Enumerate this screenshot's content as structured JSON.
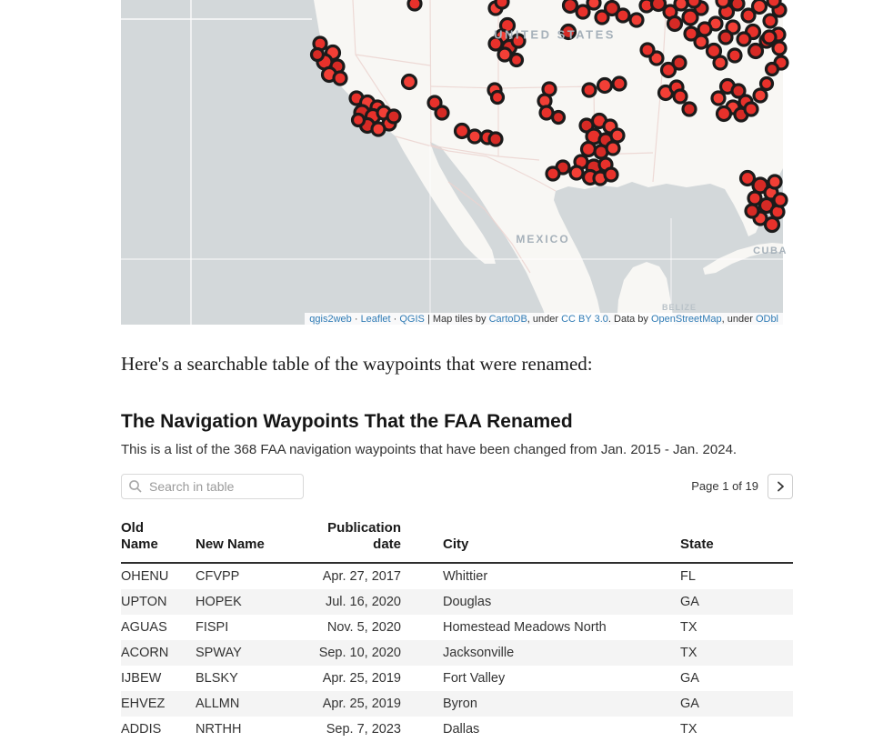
{
  "map": {
    "ocean_color": "#d3d8da",
    "land_color": "#f8f7f4",
    "marker_stroke": "#1b1b1b",
    "marker_palette": [
      "#e8312b",
      "#d62a25",
      "#f23f36",
      "#cc261f"
    ],
    "labels": {
      "united_states": "UNITED STATES",
      "mexico": "MEXICO",
      "cuba": "CUBA",
      "belize": "BELIZE"
    },
    "attribution_parts": [
      [
        "qgis2web",
        true
      ],
      [
        " · ",
        false
      ],
      [
        "Leaflet",
        true
      ],
      [
        " · ",
        false
      ],
      [
        "QGIS",
        true
      ],
      [
        " | Map tiles by ",
        false
      ],
      [
        "CartoDB",
        true
      ],
      [
        ", under ",
        false
      ],
      [
        "CC BY 3.0",
        true
      ],
      [
        ". Data by ",
        false
      ],
      [
        "OpenStreetMap",
        true
      ],
      [
        ", under ",
        false
      ],
      [
        "ODbl",
        true
      ]
    ],
    "markers": [
      [
        219,
        48,
        7,
        0
      ],
      [
        233,
        58,
        7.5,
        2
      ],
      [
        224,
        68,
        8,
        0
      ],
      [
        238,
        73,
        7,
        1
      ],
      [
        229,
        82,
        7.5,
        2
      ],
      [
        241,
        86,
        7,
        0
      ],
      [
        216,
        60,
        6.5,
        1
      ],
      [
        259,
        108,
        7,
        0
      ],
      [
        271,
        113,
        7.5,
        2
      ],
      [
        282,
        118,
        7,
        0
      ],
      [
        265,
        124,
        8,
        1
      ],
      [
        277,
        128,
        7.5,
        0
      ],
      [
        289,
        124,
        7,
        2
      ],
      [
        295,
        136,
        7,
        0
      ],
      [
        271,
        138,
        7.5,
        1
      ],
      [
        283,
        142,
        7,
        2
      ],
      [
        261,
        132,
        6.5,
        0
      ],
      [
        300,
        128,
        7,
        1
      ],
      [
        317,
        90,
        7.5,
        2
      ],
      [
        345,
        113,
        7,
        0
      ],
      [
        353,
        124,
        7,
        1
      ],
      [
        375,
        144,
        7.5,
        0
      ],
      [
        389,
        150,
        7,
        2
      ],
      [
        403,
        151,
        7,
        0
      ],
      [
        412,
        153,
        7,
        1
      ],
      [
        411,
        99,
        7,
        2
      ],
      [
        414,
        107,
        6.5,
        0
      ],
      [
        425,
        28,
        7.5,
        0
      ],
      [
        419,
        40,
        7,
        2
      ],
      [
        412,
        48,
        7,
        0
      ],
      [
        427,
        52,
        7.5,
        1
      ],
      [
        437,
        45,
        7,
        0
      ],
      [
        422,
        60,
        7,
        2
      ],
      [
        435,
        66,
        6.5,
        0
      ],
      [
        492,
        35,
        7.5,
        1
      ],
      [
        471,
        98,
        7,
        0
      ],
      [
        466,
        111,
        7,
        2
      ],
      [
        468,
        124,
        7,
        0
      ],
      [
        481,
        129,
        6.5,
        1
      ],
      [
        515,
        99,
        7,
        0
      ],
      [
        532,
        94,
        7.5,
        2
      ],
      [
        548,
        92,
        7,
        0
      ],
      [
        512,
        138,
        7,
        1
      ],
      [
        526,
        133,
        7.5,
        0
      ],
      [
        538,
        139,
        7,
        2
      ],
      [
        520,
        150,
        8,
        0
      ],
      [
        533,
        154,
        7,
        1
      ],
      [
        546,
        149,
        7,
        2
      ],
      [
        514,
        164,
        7.5,
        0
      ],
      [
        528,
        167,
        7,
        1
      ],
      [
        541,
        163,
        7,
        2
      ],
      [
        506,
        178,
        7,
        0
      ],
      [
        520,
        184,
        8,
        1
      ],
      [
        533,
        181,
        7,
        0
      ],
      [
        501,
        190,
        7,
        2
      ],
      [
        516,
        195,
        7.5,
        0
      ],
      [
        486,
        184,
        7,
        1
      ],
      [
        475,
        191,
        7,
        0
      ],
      [
        527,
        196,
        7,
        2
      ],
      [
        539,
        192,
        7,
        0
      ],
      [
        323,
        4,
        7,
        0
      ],
      [
        412,
        9,
        7,
        2
      ],
      [
        419,
        2,
        7,
        0
      ],
      [
        494,
        6,
        7.5,
        1
      ],
      [
        508,
        13,
        7,
        0
      ],
      [
        520,
        3,
        7,
        2
      ],
      [
        529,
        19,
        7,
        0
      ],
      [
        540,
        9,
        7.5,
        1
      ],
      [
        552,
        17,
        7,
        0
      ],
      [
        567,
        22,
        7,
        2
      ],
      [
        578,
        6,
        7,
        0
      ],
      [
        591,
        4,
        7.5,
        1
      ],
      [
        604,
        13,
        7,
        0
      ],
      [
        616,
        4,
        7,
        2
      ],
      [
        626,
        19,
        8,
        0
      ],
      [
        638,
        9,
        7,
        1
      ],
      [
        654,
        26,
        7,
        2
      ],
      [
        666,
        13,
        7.5,
        0
      ],
      [
        678,
        4,
        7,
        1
      ],
      [
        690,
        17,
        7,
        0
      ],
      [
        702,
        7,
        7.5,
        2
      ],
      [
        714,
        23,
        7,
        0
      ],
      [
        724,
        11,
        7,
        1
      ],
      [
        718,
        1,
        7,
        0
      ],
      [
        662,
        1,
        7,
        2
      ],
      [
        630,
        1,
        7,
        0
      ],
      [
        609,
        26,
        7.5,
        1
      ],
      [
        642,
        32,
        7,
        0
      ],
      [
        673,
        30,
        7,
        2
      ],
      [
        695,
        35,
        7.5,
        0
      ],
      [
        710,
        45,
        7,
        1
      ],
      [
        723,
        38,
        7,
        0
      ],
      [
        589,
        64,
        7,
        2
      ],
      [
        602,
        77,
        7.5,
        0
      ],
      [
        614,
        69,
        7,
        1
      ],
      [
        627,
        37,
        7,
        0
      ],
      [
        638,
        46,
        7,
        2
      ],
      [
        652,
        56,
        7.5,
        0
      ],
      [
        665,
        41,
        7,
        1
      ],
      [
        675,
        61,
        7,
        0
      ],
      [
        659,
        69,
        7,
        2
      ],
      [
        685,
        43,
        7,
        0
      ],
      [
        698,
        56,
        7.5,
        1
      ],
      [
        713,
        41,
        7,
        0
      ],
      [
        724,
        53,
        7,
        2
      ],
      [
        726,
        69,
        7,
        0
      ],
      [
        716,
        76,
        6.5,
        1
      ],
      [
        579,
        55,
        7,
        0
      ],
      [
        599,
        102,
        7.5,
        2
      ],
      [
        611,
        96,
        7,
        0
      ],
      [
        625,
        120,
        7,
        1
      ],
      [
        615,
        106,
        7,
        0
      ],
      [
        657,
        108,
        7,
        2
      ],
      [
        667,
        95,
        7.5,
        0
      ],
      [
        679,
        100,
        7,
        1
      ],
      [
        687,
        112,
        7,
        0
      ],
      [
        673,
        118,
        7,
        2
      ],
      [
        663,
        125,
        7.5,
        0
      ],
      [
        682,
        126,
        7,
        1
      ],
      [
        693,
        120,
        7,
        0
      ],
      [
        703,
        105,
        7,
        2
      ],
      [
        710,
        92,
        6.5,
        0
      ],
      [
        689,
        196,
        7.5,
        0
      ],
      [
        703,
        204,
        8,
        1
      ],
      [
        715,
        212,
        7,
        2
      ],
      [
        697,
        218,
        7,
        0
      ],
      [
        710,
        226,
        7.5,
        1
      ],
      [
        722,
        233,
        7,
        0
      ],
      [
        703,
        240,
        7,
        2
      ],
      [
        716,
        247,
        7.5,
        0
      ],
      [
        694,
        232,
        7,
        1
      ],
      [
        725,
        220,
        7,
        0
      ],
      [
        719,
        200,
        7,
        2
      ]
    ]
  },
  "intro": {
    "text": "Here's a searchable table of the waypoints that were renamed:"
  },
  "table_widget": {
    "title": "The Navigation Waypoints That the FAA Renamed",
    "description": "This is a list of the 368 FAA navigation waypoints that have been changed from Jan. 2015 - Jan. 2024.",
    "search_placeholder": "Search in table",
    "pagination": {
      "label": "Page 1 of 19"
    },
    "columns": [
      "Old Name",
      "New Name",
      "Publication date",
      "City",
      "State"
    ],
    "rows": [
      [
        "OHENU",
        "CFVPP",
        "Apr. 27, 2017",
        "Whittier",
        "FL"
      ],
      [
        "UPTON",
        "HOPEK",
        "Jul. 16, 2020",
        "Douglas",
        "GA"
      ],
      [
        "AGUAS",
        "FISPI",
        "Nov. 5, 2020",
        "Homestead Meadows North",
        "TX"
      ],
      [
        "ACORN",
        "SPWAY",
        "Sep. 10, 2020",
        "Jacksonville",
        "TX"
      ],
      [
        "IJBEW",
        "BLSKY",
        "Apr. 25, 2019",
        "Fort Valley",
        "GA"
      ],
      [
        "EHVEZ",
        "ALLMN",
        "Apr. 25, 2019",
        "Byron",
        "GA"
      ],
      [
        "ADDIS",
        "NRTHH",
        "Sep. 7, 2023",
        "Dallas",
        "TX"
      ]
    ]
  }
}
